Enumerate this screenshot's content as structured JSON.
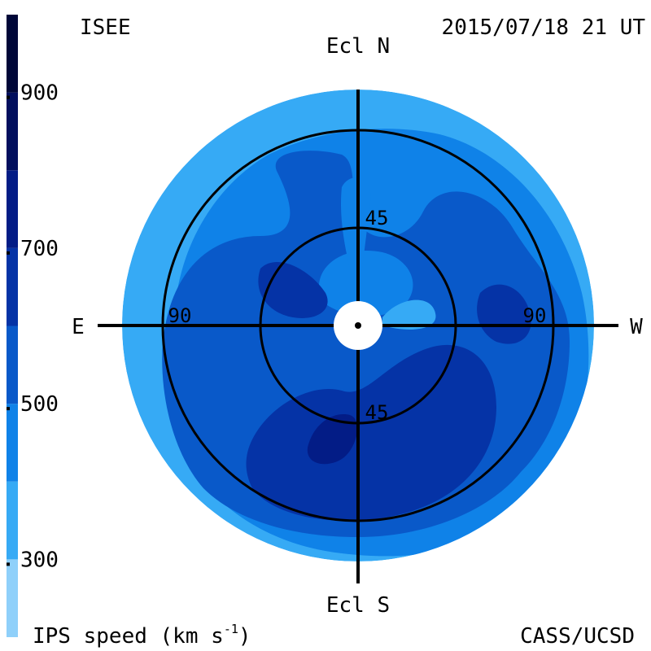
{
  "header": {
    "left_label": "ISEE",
    "timestamp": "2015/07/18 21 UT"
  },
  "footer": {
    "colorbar_title_prefix": "IPS speed (km s",
    "colorbar_title_exp": "-1",
    "colorbar_title_suffix": ")",
    "credit": "CASS/UCSD"
  },
  "chart_data": {
    "type": "heatmap",
    "projection": "polar",
    "quantity": "IPS speed",
    "units": "km s-1",
    "axis_labels": {
      "north": "Ecl N",
      "south": "Ecl S",
      "east": "E",
      "west": "W"
    },
    "ring_labels": [
      {
        "value": "45",
        "label": "45",
        "position": "north"
      },
      {
        "value": "45",
        "label": "45",
        "position": "south"
      },
      {
        "value": "90",
        "label": "90",
        "position": "east"
      },
      {
        "value": "90",
        "label": "90",
        "position": "west"
      }
    ],
    "ring_radii_deg": [
      45,
      90
    ],
    "colorbar": {
      "range": [
        200,
        1000
      ],
      "step": 100,
      "tick_labels": [
        "900",
        "700",
        "500",
        "300"
      ],
      "tick_values": [
        900,
        700,
        500,
        300
      ],
      "colors": [
        {
          "from": 200,
          "to": 300,
          "color": "#8fd0fa"
        },
        {
          "from": 300,
          "to": 400,
          "color": "#36aaf5"
        },
        {
          "from": 400,
          "to": 500,
          "color": "#0f82e8"
        },
        {
          "from": 500,
          "to": 600,
          "color": "#0959c9"
        },
        {
          "from": 600,
          "to": 700,
          "color": "#0533a6"
        },
        {
          "from": 700,
          "to": 800,
          "color": "#031c86"
        },
        {
          "from": 800,
          "to": 900,
          "color": "#020f5e"
        },
        {
          "from": 900,
          "to": 1000,
          "color": "#000738"
        }
      ]
    }
  }
}
